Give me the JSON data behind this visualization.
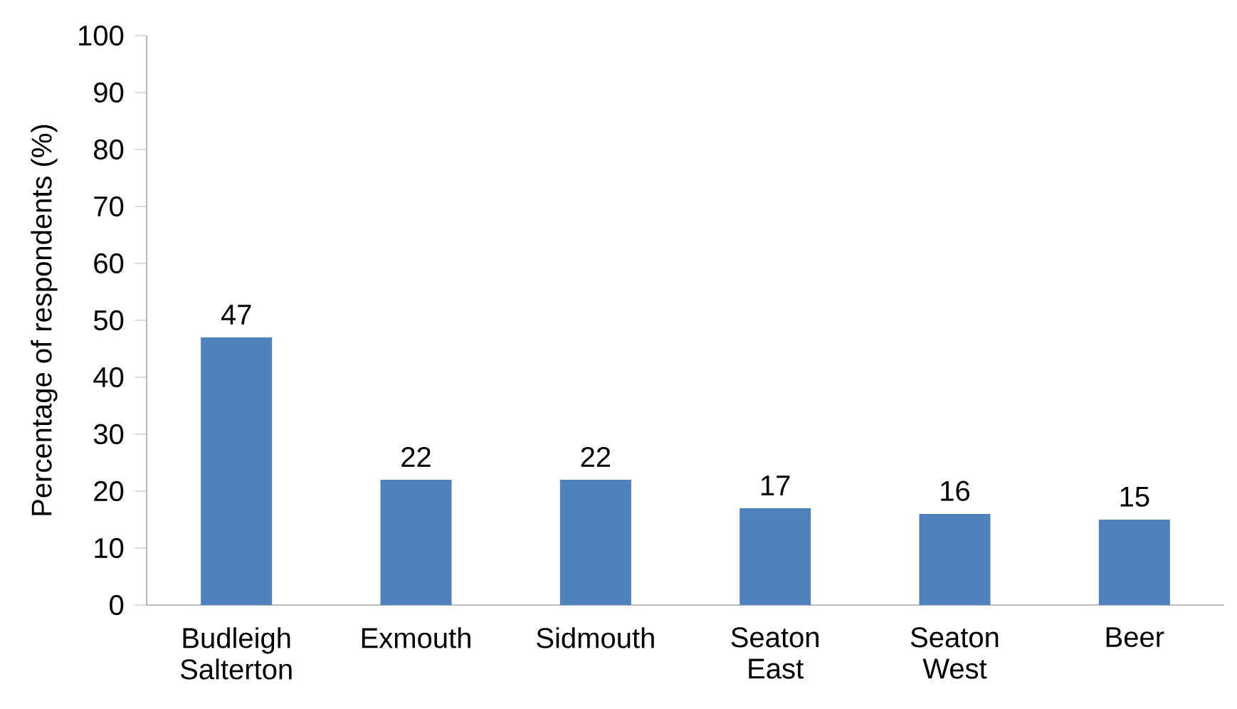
{
  "chart_data": {
    "type": "bar",
    "ylabel": "Percentage of respondents (%)",
    "categories": [
      "Budleigh Salterton",
      "Exmouth",
      "Sidmouth",
      "Seaton East",
      "Seaton West",
      "Beer"
    ],
    "values": [
      47,
      22,
      22,
      17,
      16,
      15
    ],
    "color": "#4f81bd",
    "ylim": [
      0,
      100
    ],
    "yticks": [
      0,
      10,
      20,
      30,
      40,
      50,
      60,
      70,
      80,
      90,
      100
    ],
    "grid": false,
    "data_labels": true
  }
}
